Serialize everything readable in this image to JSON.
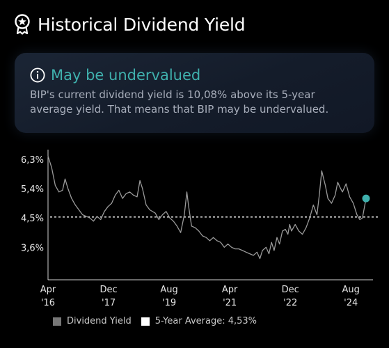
{
  "header": {
    "title": "Historical Dividend Yield",
    "icon": "award-ribbon-icon"
  },
  "card": {
    "status": "May be undervalued",
    "status_icon": "info-icon",
    "line1": "BIP's current dividend yield is 10,08% above its 5-year",
    "line2": "average yield. That means that BIP may be undervalued.",
    "accent": "#3fb0ad"
  },
  "legend": {
    "dividend_label": "Dividend Yield",
    "average_label": "5-Year Average: 4,53%",
    "dividend_color": "#777777",
    "average_color": "#ffffff"
  },
  "chart_data": {
    "type": "line",
    "yticks": [
      {
        "value": 3.6,
        "label": "3,6%"
      },
      {
        "value": 4.5,
        "label": "4,5%"
      },
      {
        "value": 5.4,
        "label": "5,4%"
      },
      {
        "value": 6.3,
        "label": "6,3%"
      }
    ],
    "xticks": [
      {
        "value": 2016.25,
        "label1": "Apr",
        "label2": "'16"
      },
      {
        "value": 2017.917,
        "label1": "Dec",
        "label2": "'17"
      },
      {
        "value": 2019.583,
        "label1": "Aug",
        "label2": "'19"
      },
      {
        "value": 2021.25,
        "label1": "Apr",
        "label2": "'21"
      },
      {
        "value": 2022.917,
        "label1": "Dec",
        "label2": "'22"
      },
      {
        "value": 2024.583,
        "label1": "Aug",
        "label2": "'24"
      }
    ],
    "ylim": [
      2.6,
      6.6
    ],
    "xlim": [
      2016.25,
      2025.0
    ],
    "average": 4.53,
    "series": [
      {
        "color": "#9a9a9a",
        "points": [
          [
            2016.25,
            6.4
          ],
          [
            2016.35,
            6.05
          ],
          [
            2016.45,
            5.5
          ],
          [
            2016.55,
            5.3
          ],
          [
            2016.65,
            5.35
          ],
          [
            2016.72,
            5.7
          ],
          [
            2016.8,
            5.4
          ],
          [
            2016.9,
            5.1
          ],
          [
            2017.0,
            4.9
          ],
          [
            2017.1,
            4.75
          ],
          [
            2017.2,
            4.6
          ],
          [
            2017.3,
            4.55
          ],
          [
            2017.4,
            4.5
          ],
          [
            2017.5,
            4.4
          ],
          [
            2017.6,
            4.55
          ],
          [
            2017.7,
            4.45
          ],
          [
            2017.8,
            4.7
          ],
          [
            2017.9,
            4.85
          ],
          [
            2018.0,
            4.95
          ],
          [
            2018.1,
            5.2
          ],
          [
            2018.2,
            5.35
          ],
          [
            2018.3,
            5.1
          ],
          [
            2018.4,
            5.25
          ],
          [
            2018.5,
            5.3
          ],
          [
            2018.6,
            5.2
          ],
          [
            2018.7,
            5.15
          ],
          [
            2018.78,
            5.65
          ],
          [
            2018.85,
            5.4
          ],
          [
            2018.95,
            4.9
          ],
          [
            2019.05,
            4.75
          ],
          [
            2019.2,
            4.65
          ],
          [
            2019.3,
            4.45
          ],
          [
            2019.4,
            4.6
          ],
          [
            2019.5,
            4.7
          ],
          [
            2019.6,
            4.5
          ],
          [
            2019.7,
            4.4
          ],
          [
            2019.8,
            4.25
          ],
          [
            2019.9,
            4.05
          ],
          [
            2020.0,
            4.6
          ],
          [
            2020.07,
            5.3
          ],
          [
            2020.12,
            4.85
          ],
          [
            2020.2,
            4.25
          ],
          [
            2020.3,
            4.2
          ],
          [
            2020.4,
            4.1
          ],
          [
            2020.5,
            3.95
          ],
          [
            2020.6,
            3.9
          ],
          [
            2020.7,
            3.8
          ],
          [
            2020.8,
            3.9
          ],
          [
            2020.9,
            3.8
          ],
          [
            2021.0,
            3.75
          ],
          [
            2021.1,
            3.6
          ],
          [
            2021.2,
            3.7
          ],
          [
            2021.3,
            3.6
          ],
          [
            2021.4,
            3.55
          ],
          [
            2021.5,
            3.55
          ],
          [
            2021.6,
            3.5
          ],
          [
            2021.7,
            3.45
          ],
          [
            2021.8,
            3.4
          ],
          [
            2021.9,
            3.35
          ],
          [
            2022.0,
            3.45
          ],
          [
            2022.08,
            3.25
          ],
          [
            2022.15,
            3.5
          ],
          [
            2022.25,
            3.6
          ],
          [
            2022.33,
            3.4
          ],
          [
            2022.4,
            3.75
          ],
          [
            2022.47,
            3.5
          ],
          [
            2022.55,
            3.9
          ],
          [
            2022.62,
            3.7
          ],
          [
            2022.7,
            4.1
          ],
          [
            2022.78,
            4.15
          ],
          [
            2022.85,
            4.0
          ],
          [
            2022.9,
            4.3
          ],
          [
            2022.95,
            4.1
          ],
          [
            2023.05,
            4.3
          ],
          [
            2023.15,
            4.1
          ],
          [
            2023.25,
            4.0
          ],
          [
            2023.35,
            4.2
          ],
          [
            2023.45,
            4.5
          ],
          [
            2023.55,
            4.9
          ],
          [
            2023.65,
            4.6
          ],
          [
            2023.72,
            5.25
          ],
          [
            2023.78,
            5.95
          ],
          [
            2023.88,
            5.5
          ],
          [
            2023.95,
            5.1
          ],
          [
            2024.05,
            4.95
          ],
          [
            2024.15,
            5.2
          ],
          [
            2024.22,
            5.6
          ],
          [
            2024.28,
            5.45
          ],
          [
            2024.35,
            5.3
          ],
          [
            2024.45,
            5.55
          ],
          [
            2024.55,
            5.15
          ],
          [
            2024.65,
            4.95
          ],
          [
            2024.75,
            4.6
          ],
          [
            2024.83,
            4.45
          ],
          [
            2024.9,
            4.5
          ],
          [
            2025.0,
            5.1
          ]
        ]
      }
    ]
  }
}
